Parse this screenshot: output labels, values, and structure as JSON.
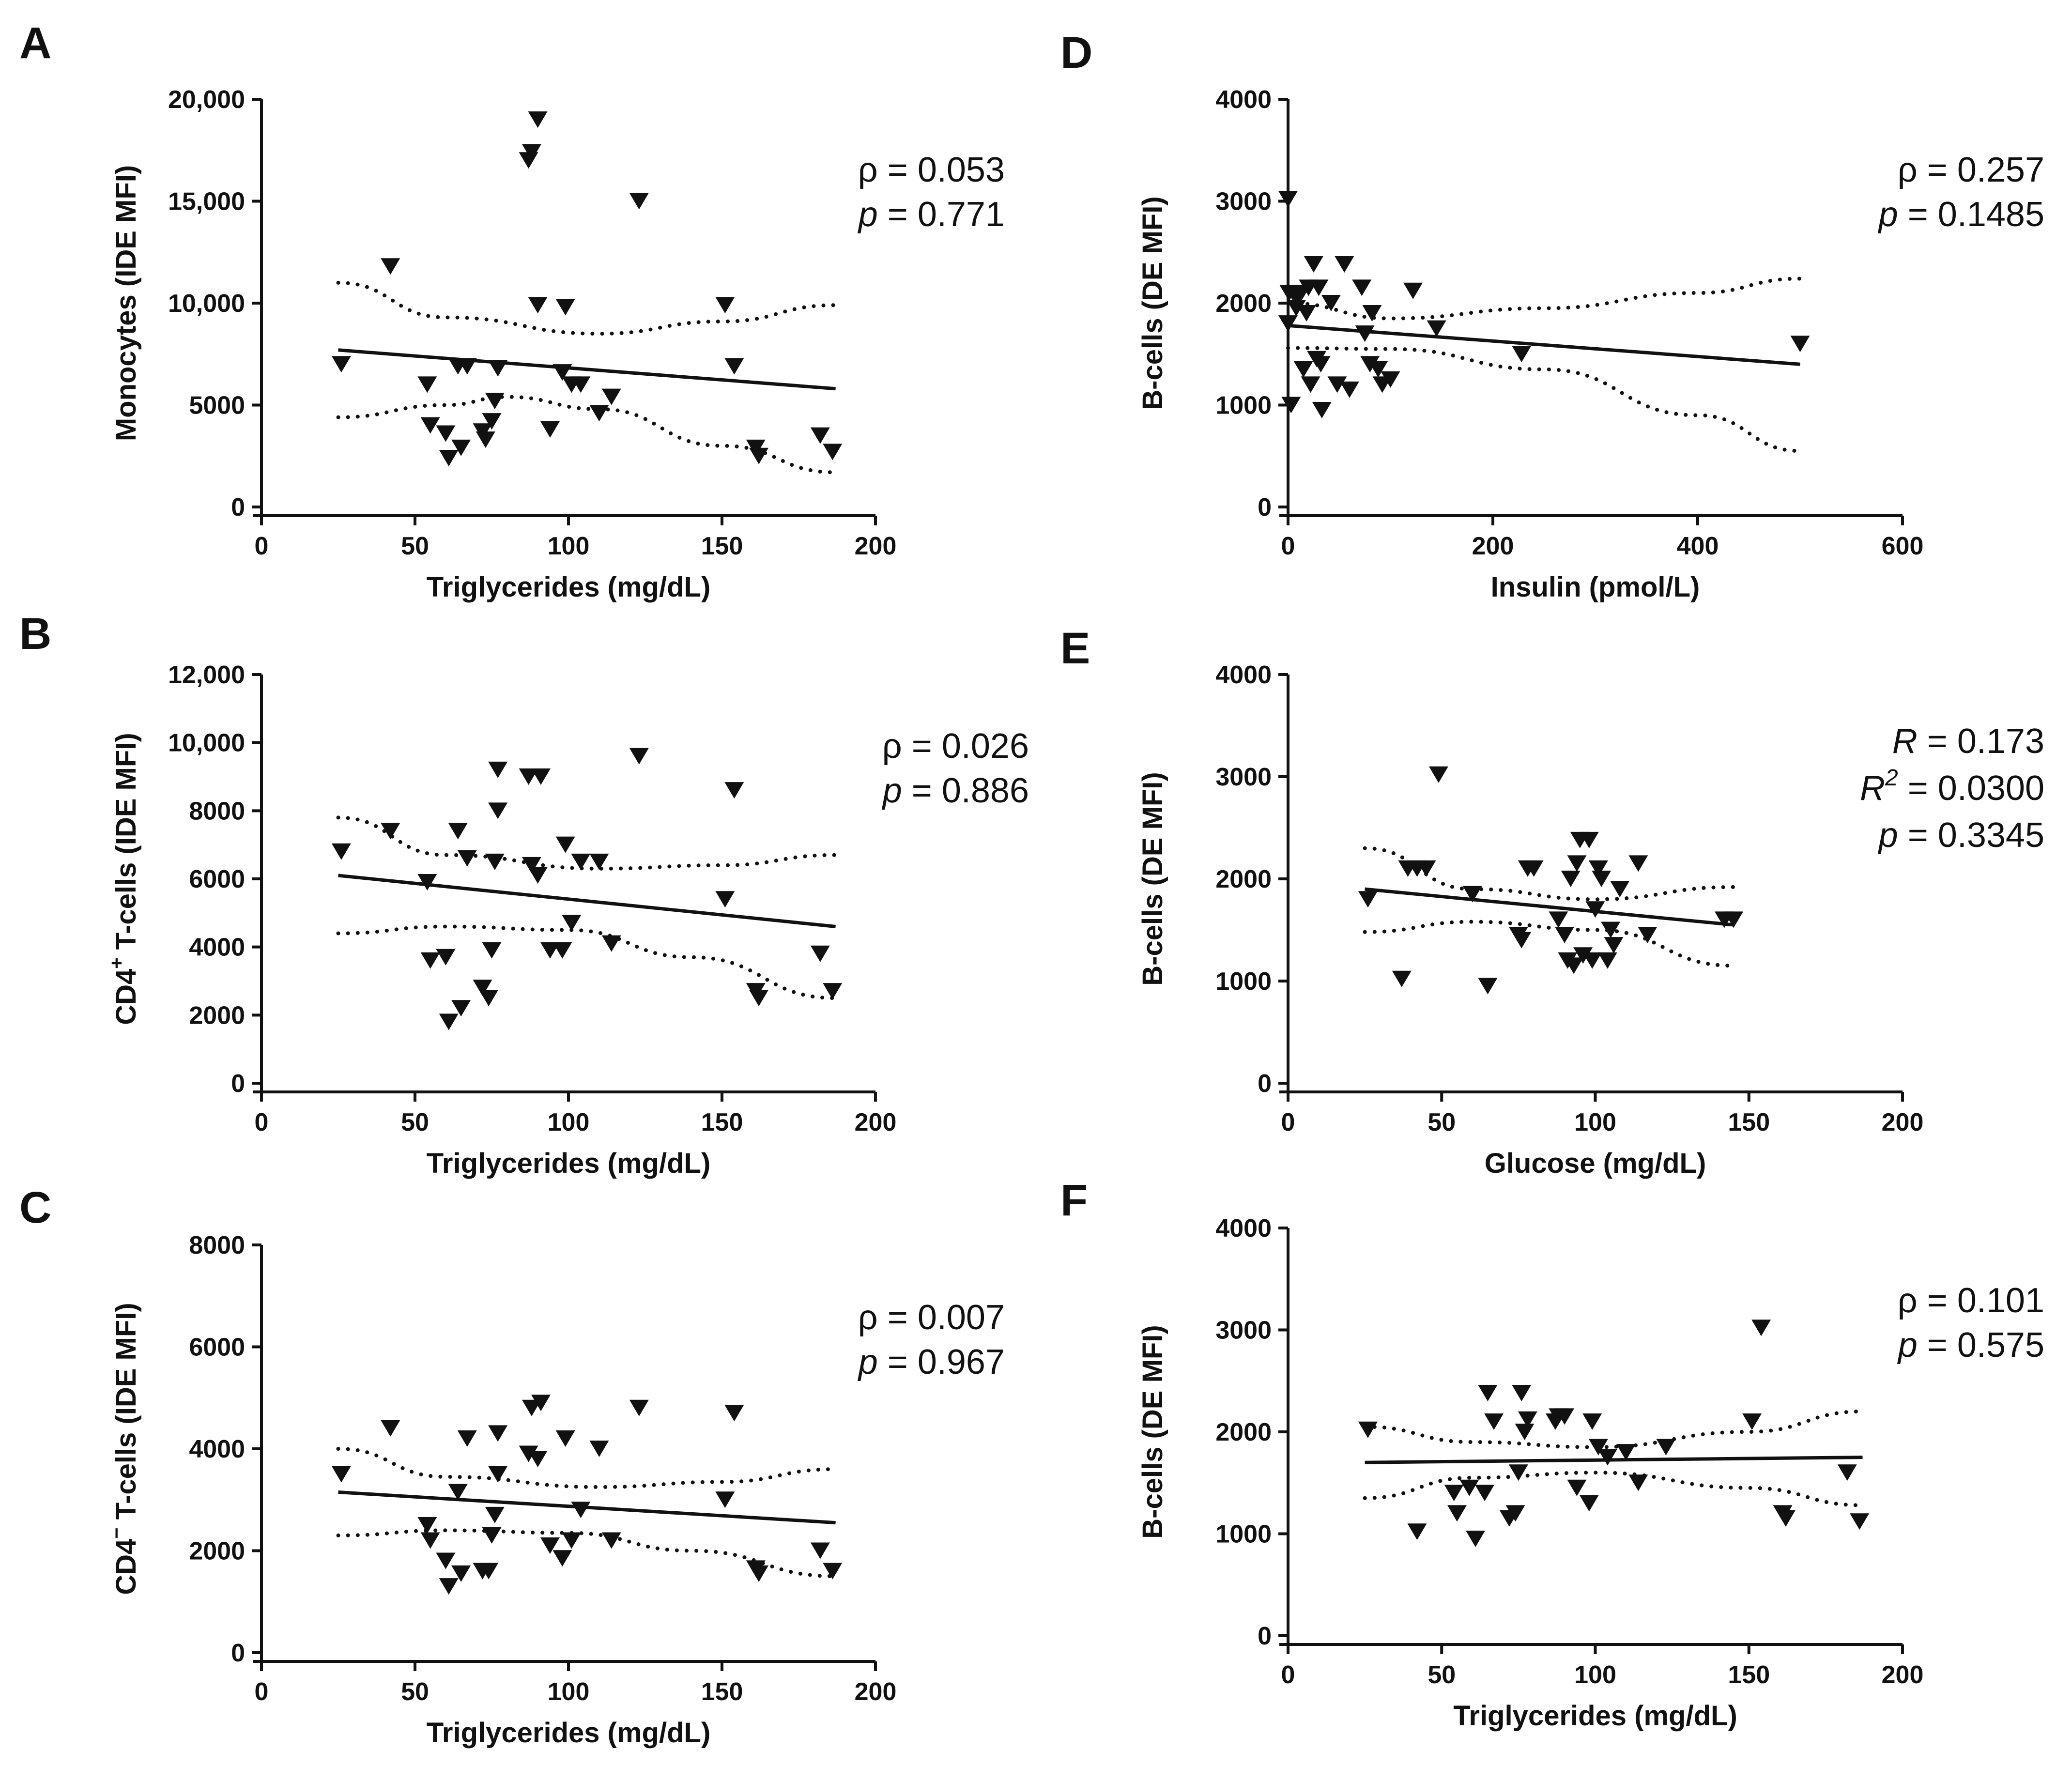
{
  "chart_data": [
    {
      "panel": "A",
      "type": "scatter",
      "xlabel": "Triglycerides (mg/dL)",
      "ylabel": "Monocytes (IDE MFI)",
      "xlim": [
        0,
        200
      ],
      "ylim": [
        0,
        20000
      ],
      "xticks": [
        0,
        50,
        100,
        150,
        200
      ],
      "xtick_labels": [
        "0",
        "50",
        "100",
        "150",
        "200"
      ],
      "yticks": [
        0,
        5000,
        10000,
        15000,
        20000
      ],
      "ytick_labels": [
        "0",
        "5000",
        "10,000",
        "15,000",
        "20,000"
      ],
      "stats": [
        {
          "label": "ρ",
          "italic": false,
          "sup": "",
          "value": " = 0.053"
        },
        {
          "label": "p",
          "italic": true,
          "sup": "",
          "value": " = 0.771"
        }
      ],
      "fit": [
        [
          25,
          7700
        ],
        [
          187,
          5800
        ]
      ],
      "ci_upper": [
        [
          25,
          11000
        ],
        [
          60,
          9300
        ],
        [
          110,
          8500
        ],
        [
          150,
          9100
        ],
        [
          187,
          9900
        ]
      ],
      "ci_lower": [
        [
          25,
          4400
        ],
        [
          60,
          5000
        ],
        [
          80,
          5400
        ],
        [
          110,
          4800
        ],
        [
          150,
          3000
        ],
        [
          187,
          1700
        ]
      ],
      "points": [
        [
          26,
          7000
        ],
        [
          42,
          11800
        ],
        [
          54,
          6000
        ],
        [
          55,
          4000
        ],
        [
          60,
          3600
        ],
        [
          61,
          2400
        ],
        [
          64,
          6900
        ],
        [
          65,
          2900
        ],
        [
          67,
          6900
        ],
        [
          72,
          3700
        ],
        [
          73,
          3300
        ],
        [
          75,
          4200
        ],
        [
          76,
          5200
        ],
        [
          77,
          6800
        ],
        [
          87,
          17000
        ],
        [
          88,
          17400
        ],
        [
          90,
          19000
        ],
        [
          90,
          9900
        ],
        [
          94,
          3800
        ],
        [
          98,
          6600
        ],
        [
          99,
          9800
        ],
        [
          101,
          6000
        ],
        [
          104,
          6000
        ],
        [
          110,
          4600
        ],
        [
          114,
          5400
        ],
        [
          123,
          15000
        ],
        [
          151,
          9900
        ],
        [
          154,
          6900
        ],
        [
          161,
          2900
        ],
        [
          162,
          2500
        ],
        [
          182,
          3500
        ],
        [
          186,
          2700
        ]
      ]
    },
    {
      "panel": "D",
      "type": "scatter",
      "xlabel": "Insulin (pmol/L)",
      "ylabel": "B-cells (DE MFI)",
      "xlim": [
        0,
        600
      ],
      "ylim": [
        0,
        4000
      ],
      "xticks": [
        0,
        200,
        400,
        600
      ],
      "xtick_labels": [
        "0",
        "200",
        "400",
        "600"
      ],
      "yticks": [
        0,
        1000,
        2000,
        3000,
        4000
      ],
      "ytick_labels": [
        "0",
        "1000",
        "2000",
        "3000",
        "4000"
      ],
      "stats": [
        {
          "label": "ρ",
          "italic": false,
          "sup": "",
          "value": " = 0.257"
        },
        {
          "label": "p",
          "italic": true,
          "sup": "",
          "value": " = 0.1485"
        }
      ],
      "fit": [
        [
          0,
          1780
        ],
        [
          500,
          1400
        ]
      ],
      "ci_upper": [
        [
          0,
          2000
        ],
        [
          100,
          1850
        ],
        [
          250,
          1950
        ],
        [
          400,
          2100
        ],
        [
          500,
          2240
        ]
      ],
      "ci_lower": [
        [
          0,
          1560
        ],
        [
          100,
          1550
        ],
        [
          250,
          1350
        ],
        [
          400,
          900
        ],
        [
          500,
          550
        ]
      ],
      "points": [
        [
          0,
          3020
        ],
        [
          0,
          1800
        ],
        [
          1,
          2100
        ],
        [
          3,
          1000
        ],
        [
          5,
          2100
        ],
        [
          8,
          1950
        ],
        [
          10,
          2050
        ],
        [
          12,
          2100
        ],
        [
          15,
          1350
        ],
        [
          18,
          1900
        ],
        [
          20,
          2150
        ],
        [
          22,
          1200
        ],
        [
          25,
          2380
        ],
        [
          28,
          1450
        ],
        [
          30,
          2150
        ],
        [
          32,
          1400
        ],
        [
          33,
          950
        ],
        [
          42,
          2000
        ],
        [
          48,
          1200
        ],
        [
          55,
          2380
        ],
        [
          60,
          1150
        ],
        [
          72,
          2150
        ],
        [
          75,
          1700
        ],
        [
          80,
          1400
        ],
        [
          82,
          1900
        ],
        [
          88,
          1350
        ],
        [
          92,
          1200
        ],
        [
          100,
          1250
        ],
        [
          122,
          2120
        ],
        [
          145,
          1750
        ],
        [
          228,
          1500
        ],
        [
          500,
          1600
        ]
      ]
    },
    {
      "panel": "B",
      "type": "scatter",
      "xlabel": "Triglycerides (mg/dL)",
      "ylabel": "CD4",
      "ylabel_sup": "+",
      "ylabel_rest": " T-cells (IDE MFI)",
      "xlim": [
        0,
        200
      ],
      "ylim": [
        0,
        12000
      ],
      "xticks": [
        0,
        50,
        100,
        150,
        200
      ],
      "xtick_labels": [
        "0",
        "50",
        "100",
        "150",
        "200"
      ],
      "yticks": [
        0,
        2000,
        4000,
        6000,
        8000,
        10000,
        12000
      ],
      "ytick_labels": [
        "0",
        "2000",
        "4000",
        "6000",
        "8000",
        "10,000",
        "12,000"
      ],
      "stats": [
        {
          "label": "ρ",
          "italic": false,
          "sup": "",
          "value": " = 0.026"
        },
        {
          "label": "p",
          "italic": true,
          "sup": "",
          "value": " = 0.886"
        }
      ],
      "fit": [
        [
          25,
          6100
        ],
        [
          187,
          4600
        ]
      ],
      "ci_upper": [
        [
          25,
          7800
        ],
        [
          60,
          6700
        ],
        [
          110,
          6300
        ],
        [
          150,
          6400
        ],
        [
          187,
          6700
        ]
      ],
      "ci_lower": [
        [
          25,
          4400
        ],
        [
          60,
          4600
        ],
        [
          100,
          4500
        ],
        [
          140,
          3700
        ],
        [
          187,
          2500
        ]
      ],
      "points": [
        [
          26,
          6800
        ],
        [
          42,
          7400
        ],
        [
          54,
          5900
        ],
        [
          55,
          3600
        ],
        [
          60,
          3700
        ],
        [
          61,
          1800
        ],
        [
          64,
          7400
        ],
        [
          65,
          2200
        ],
        [
          67,
          6600
        ],
        [
          72,
          2800
        ],
        [
          74,
          2500
        ],
        [
          75,
          3900
        ],
        [
          76,
          6500
        ],
        [
          77,
          8000
        ],
        [
          77,
          9200
        ],
        [
          87,
          9000
        ],
        [
          88,
          6400
        ],
        [
          90,
          6100
        ],
        [
          91,
          9000
        ],
        [
          94,
          3900
        ],
        [
          98,
          3900
        ],
        [
          99,
          7000
        ],
        [
          101,
          4700
        ],
        [
          104,
          6500
        ],
        [
          110,
          6500
        ],
        [
          114,
          4100
        ],
        [
          123,
          9600
        ],
        [
          151,
          5400
        ],
        [
          154,
          8600
        ],
        [
          161,
          2700
        ],
        [
          162,
          2500
        ],
        [
          182,
          3800
        ],
        [
          186,
          2700
        ]
      ]
    },
    {
      "panel": "E",
      "type": "scatter",
      "xlabel": "Glucose (mg/dL)",
      "ylabel": "B-cells (DE MFI)",
      "xlim": [
        0,
        200
      ],
      "ylim": [
        0,
        4000
      ],
      "xticks": [
        0,
        50,
        100,
        150,
        200
      ],
      "xtick_labels": [
        "0",
        "50",
        "100",
        "150",
        "200"
      ],
      "yticks": [
        0,
        1000,
        2000,
        3000,
        4000
      ],
      "ytick_labels": [
        "0",
        "1000",
        "2000",
        "3000",
        "4000"
      ],
      "stats": [
        {
          "label": "R",
          "italic": true,
          "sup": "",
          "value": " = 0.173"
        },
        {
          "label": "R",
          "italic": true,
          "sup": "2",
          "value": " = 0.0300"
        },
        {
          "label": "p",
          "italic": true,
          "sup": "",
          "value": " = 0.3345"
        }
      ],
      "fit": [
        [
          25,
          1900
        ],
        [
          145,
          1550
        ]
      ],
      "ci_upper": [
        [
          25,
          2300
        ],
        [
          60,
          1900
        ],
        [
          100,
          1800
        ],
        [
          145,
          1920
        ]
      ],
      "ci_lower": [
        [
          25,
          1480
        ],
        [
          60,
          1580
        ],
        [
          100,
          1500
        ],
        [
          145,
          1150
        ]
      ],
      "points": [
        [
          26,
          1800
        ],
        [
          37,
          1020
        ],
        [
          39,
          2100
        ],
        [
          42,
          2100
        ],
        [
          45,
          2100
        ],
        [
          49,
          3020
        ],
        [
          60,
          1850
        ],
        [
          65,
          950
        ],
        [
          75,
          1450
        ],
        [
          76,
          1400
        ],
        [
          78,
          2100
        ],
        [
          80,
          2100
        ],
        [
          88,
          1600
        ],
        [
          90,
          1450
        ],
        [
          91,
          1200
        ],
        [
          92,
          2000
        ],
        [
          93,
          1150
        ],
        [
          94,
          2150
        ],
        [
          95,
          2380
        ],
        [
          96,
          1250
        ],
        [
          98,
          2380
        ],
        [
          99,
          1200
        ],
        [
          100,
          1700
        ],
        [
          101,
          2100
        ],
        [
          102,
          2000
        ],
        [
          104,
          1200
        ],
        [
          105,
          1500
        ],
        [
          106,
          1350
        ],
        [
          108,
          1900
        ],
        [
          114,
          2150
        ],
        [
          117,
          1450
        ],
        [
          142,
          1600
        ],
        [
          145,
          1600
        ]
      ]
    },
    {
      "panel": "C",
      "type": "scatter",
      "xlabel": "Triglycerides (mg/dL)",
      "ylabel": "CD4",
      "ylabel_sup": "−",
      "ylabel_rest": " T-cells (IDE MFI)",
      "xlim": [
        0,
        200
      ],
      "ylim": [
        0,
        8000
      ],
      "xticks": [
        0,
        50,
        100,
        150,
        200
      ],
      "xtick_labels": [
        "0",
        "50",
        "100",
        "150",
        "200"
      ],
      "yticks": [
        0,
        2000,
        4000,
        6000,
        8000
      ],
      "ytick_labels": [
        "0",
        "2000",
        "4000",
        "6000",
        "8000"
      ],
      "stats": [
        {
          "label": "ρ",
          "italic": false,
          "sup": "",
          "value": " = 0.007"
        },
        {
          "label": "p",
          "italic": true,
          "sup": "",
          "value": " = 0.967"
        }
      ],
      "fit": [
        [
          25,
          3150
        ],
        [
          187,
          2550
        ]
      ],
      "ci_upper": [
        [
          25,
          4000
        ],
        [
          60,
          3450
        ],
        [
          110,
          3250
        ],
        [
          150,
          3350
        ],
        [
          187,
          3600
        ]
      ],
      "ci_lower": [
        [
          25,
          2300
        ],
        [
          60,
          2400
        ],
        [
          100,
          2350
        ],
        [
          140,
          2000
        ],
        [
          187,
          1500
        ]
      ],
      "points": [
        [
          26,
          3500
        ],
        [
          42,
          4400
        ],
        [
          54,
          2500
        ],
        [
          55,
          2200
        ],
        [
          60,
          1800
        ],
        [
          61,
          1300
        ],
        [
          64,
          3150
        ],
        [
          65,
          1550
        ],
        [
          67,
          4200
        ],
        [
          72,
          1600
        ],
        [
          74,
          1600
        ],
        [
          75,
          2300
        ],
        [
          76,
          2700
        ],
        [
          77,
          3500
        ],
        [
          77,
          4300
        ],
        [
          87,
          3900
        ],
        [
          88,
          4800
        ],
        [
          90,
          3800
        ],
        [
          91,
          4900
        ],
        [
          94,
          2100
        ],
        [
          98,
          1850
        ],
        [
          99,
          4200
        ],
        [
          101,
          2200
        ],
        [
          104,
          2800
        ],
        [
          110,
          4000
        ],
        [
          114,
          2200
        ],
        [
          123,
          4800
        ],
        [
          151,
          3000
        ],
        [
          154,
          4700
        ],
        [
          161,
          1650
        ],
        [
          162,
          1550
        ],
        [
          182,
          2000
        ],
        [
          186,
          1600
        ]
      ]
    },
    {
      "panel": "F",
      "type": "scatter",
      "xlabel": "Triglycerides (mg/dL)",
      "ylabel": "B-cells (DE MFI)",
      "xlim": [
        0,
        200
      ],
      "ylim": [
        0,
        4000
      ],
      "xticks": [
        0,
        50,
        100,
        150,
        200
      ],
      "xtick_labels": [
        "0",
        "50",
        "100",
        "150",
        "200"
      ],
      "yticks": [
        0,
        1000,
        2000,
        3000,
        4000
      ],
      "ytick_labels": [
        "0",
        "1000",
        "2000",
        "3000",
        "4000"
      ],
      "stats": [
        {
          "label": "ρ",
          "italic": false,
          "sup": "",
          "value": " = 0.101"
        },
        {
          "label": "p",
          "italic": true,
          "sup": "",
          "value": " = 0.575"
        }
      ],
      "fit": [
        [
          25,
          1700
        ],
        [
          187,
          1750
        ]
      ],
      "ci_upper": [
        [
          25,
          2050
        ],
        [
          60,
          1900
        ],
        [
          100,
          1850
        ],
        [
          150,
          2000
        ],
        [
          187,
          2200
        ]
      ],
      "ci_lower": [
        [
          25,
          1350
        ],
        [
          60,
          1550
        ],
        [
          100,
          1600
        ],
        [
          150,
          1450
        ],
        [
          187,
          1280
        ]
      ],
      "points": [
        [
          26,
          2020
        ],
        [
          42,
          1020
        ],
        [
          54,
          1400
        ],
        [
          55,
          1200
        ],
        [
          59,
          1450
        ],
        [
          61,
          950
        ],
        [
          64,
          1400
        ],
        [
          65,
          2380
        ],
        [
          67,
          2100
        ],
        [
          72,
          1150
        ],
        [
          74,
          1200
        ],
        [
          75,
          1600
        ],
        [
          76,
          2380
        ],
        [
          77,
          2000
        ],
        [
          78,
          2120
        ],
        [
          87,
          2100
        ],
        [
          88,
          2150
        ],
        [
          90,
          2150
        ],
        [
          94,
          1450
        ],
        [
          98,
          1300
        ],
        [
          99,
          2100
        ],
        [
          101,
          1850
        ],
        [
          104,
          1750
        ],
        [
          110,
          1800
        ],
        [
          114,
          1500
        ],
        [
          123,
          1850
        ],
        [
          151,
          2100
        ],
        [
          154,
          3020
        ],
        [
          161,
          1200
        ],
        [
          162,
          1150
        ],
        [
          182,
          1600
        ],
        [
          186,
          1120
        ]
      ]
    }
  ]
}
